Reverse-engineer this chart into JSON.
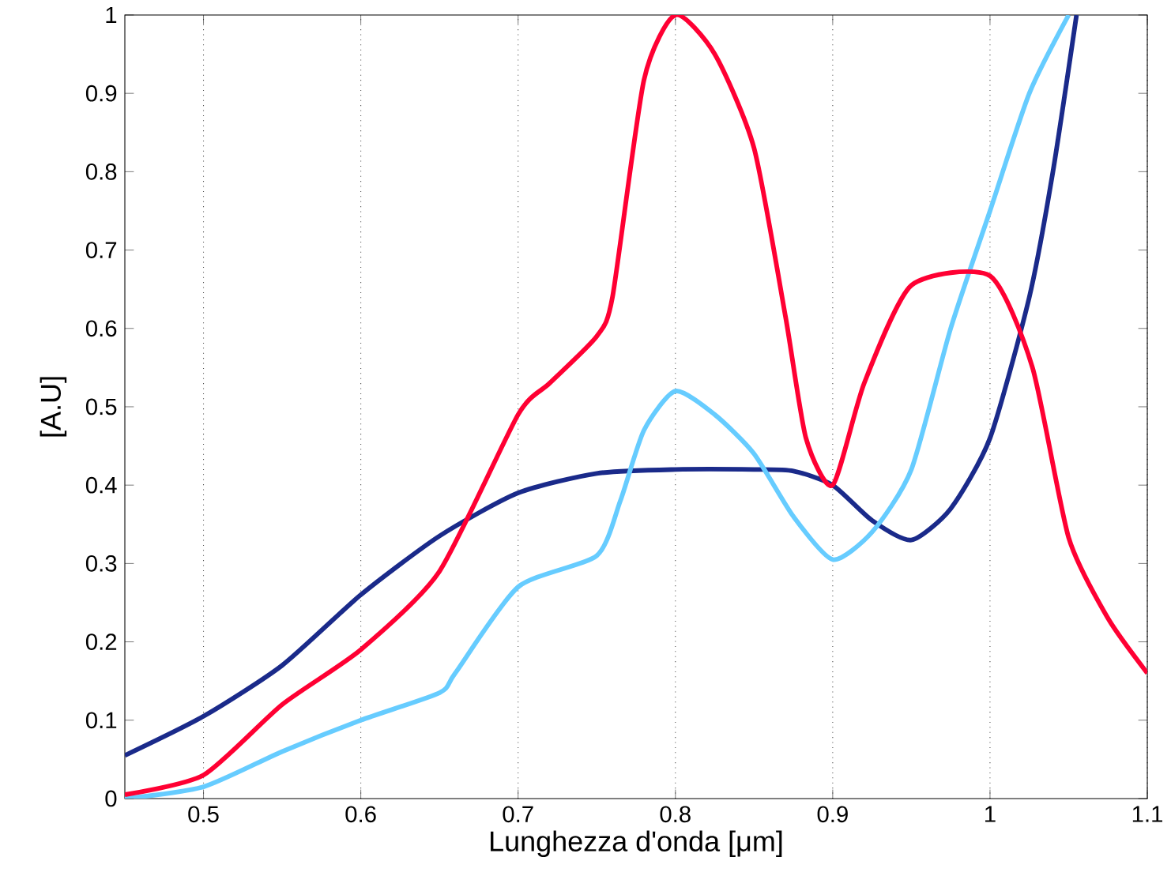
{
  "chart_data": {
    "type": "line",
    "xlabel": "Lunghezza d'onda [μm]",
    "ylabel": "[A.U]",
    "xlim": [
      0.45,
      1.1
    ],
    "xticks": [
      0.5,
      0.6,
      0.7,
      0.8,
      0.9,
      1,
      1.1
    ],
    "ylim": [
      0,
      1
    ],
    "yticks": [
      0,
      0.1,
      0.2,
      0.3,
      0.4,
      0.5,
      0.6,
      0.7,
      0.8,
      0.9,
      1
    ],
    "grid": "x",
    "marker": "none",
    "line_style": "solid",
    "series": [
      {
        "color": "#1a2a8a",
        "x": [
          0.45,
          0.5,
          0.55,
          0.6,
          0.65,
          0.7,
          0.75,
          0.8,
          0.85,
          0.875,
          0.9,
          0.925,
          0.95,
          0.975,
          1.0,
          1.025,
          1.04,
          1.055
        ],
        "values": [
          0.055,
          0.105,
          0.17,
          0.26,
          0.335,
          0.39,
          0.415,
          0.42,
          0.42,
          0.418,
          0.4,
          0.355,
          0.33,
          0.37,
          0.46,
          0.64,
          0.8,
          1.0
        ]
      },
      {
        "color": "#66ccff",
        "x": [
          0.45,
          0.5,
          0.55,
          0.6,
          0.65,
          0.66,
          0.7,
          0.75,
          0.765,
          0.78,
          0.8,
          0.825,
          0.85,
          0.875,
          0.9,
          0.925,
          0.95,
          0.975,
          1.0,
          1.025,
          1.05
        ],
        "values": [
          0.0,
          0.015,
          0.06,
          0.1,
          0.135,
          0.16,
          0.27,
          0.31,
          0.38,
          0.47,
          0.52,
          0.49,
          0.44,
          0.36,
          0.305,
          0.34,
          0.42,
          0.6,
          0.75,
          0.9,
          1.0
        ]
      },
      {
        "color": "#ff0033",
        "x": [
          0.45,
          0.5,
          0.55,
          0.6,
          0.65,
          0.7,
          0.72,
          0.75,
          0.76,
          0.78,
          0.8,
          0.825,
          0.85,
          0.87,
          0.883,
          0.9,
          0.92,
          0.95,
          1.0,
          1.027,
          1.05,
          1.075,
          1.1
        ],
        "values": [
          0.005,
          0.03,
          0.12,
          0.19,
          0.29,
          0.49,
          0.53,
          0.59,
          0.64,
          0.917,
          1.0,
          0.95,
          0.83,
          0.615,
          0.46,
          0.4,
          0.53,
          0.655,
          0.667,
          0.55,
          0.333,
          0.23,
          0.16
        ]
      }
    ]
  }
}
